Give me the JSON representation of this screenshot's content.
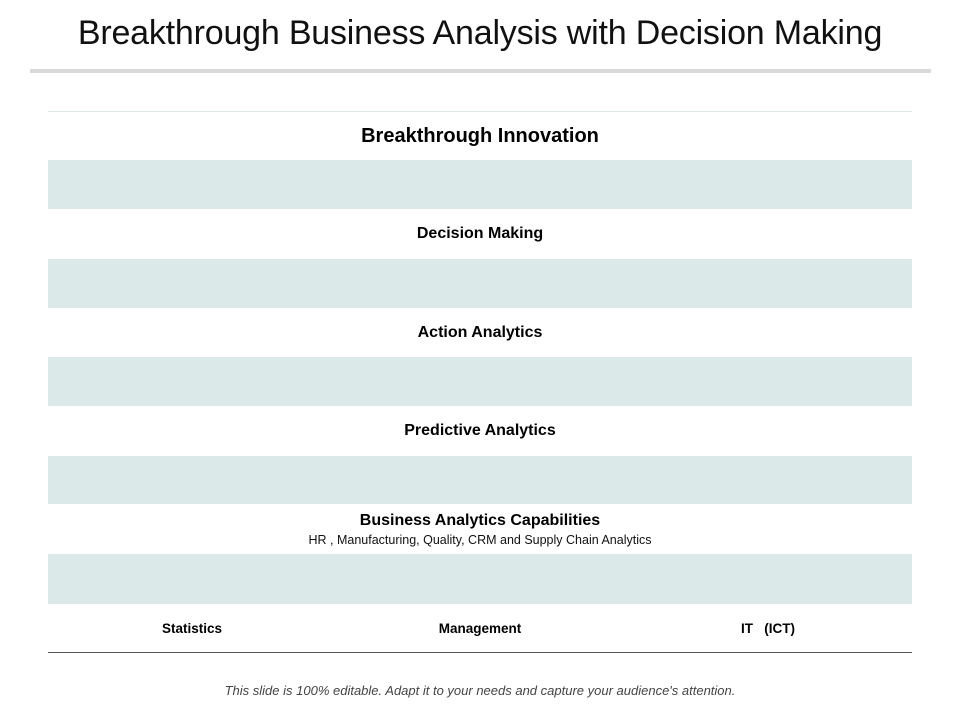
{
  "title": "Breakthrough Business Analysis with Decision Making",
  "table": {
    "levels": [
      "Breakthrough Innovation",
      "Decision Making",
      "Action Analytics",
      "Predictive Analytics"
    ],
    "capabilities": {
      "label": "Business Analytics Capabilities",
      "sub": "HR , Manufacturing, Quality, CRM and Supply Chain Analytics"
    },
    "foundations": [
      "Statistics",
      "Management",
      "IT   (ICT)"
    ]
  },
  "colors": {
    "tint_band": "#dbe9e9",
    "title_rule": "#d9d9d9"
  },
  "footer": "This slide is 100% editable. Adapt it to your needs and capture your audience's attention."
}
